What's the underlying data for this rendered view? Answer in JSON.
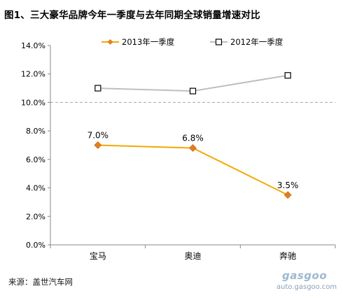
{
  "title": "图1、三大豪华品牌今年一季度与去年同期全球销量增速对比",
  "source": "来源：盖世汽车网",
  "watermark": {
    "name": "gasgoo",
    "url": "auto.gasgoo.com"
  },
  "colors": {
    "series_2013": "#F5A800",
    "series_2012": "#BFBFBF",
    "marker_2013": "#E37E1E",
    "marker_2012": "#000000",
    "reference_line": "#A6A6A6",
    "axis": "#888888"
  },
  "chart_data": {
    "type": "line",
    "categories": [
      "宝马",
      "奥迪",
      "奔驰"
    ],
    "series": [
      {
        "name": "2013年一季度",
        "values": [
          7.0,
          6.8,
          3.5
        ],
        "labels": [
          "7.0%",
          "6.8%",
          "3.5%"
        ],
        "marker": "diamond"
      },
      {
        "name": "2012年一季度",
        "values": [
          11.0,
          10.8,
          11.9
        ],
        "marker": "square-open"
      }
    ],
    "ylim": [
      0,
      14
    ],
    "yticks": [
      "0.0%",
      "2.0%",
      "4.0%",
      "6.0%",
      "8.0%",
      "10.0%",
      "12.0%",
      "14.0%"
    ],
    "reference_line": 10.0,
    "legend": "top",
    "grid": false
  }
}
